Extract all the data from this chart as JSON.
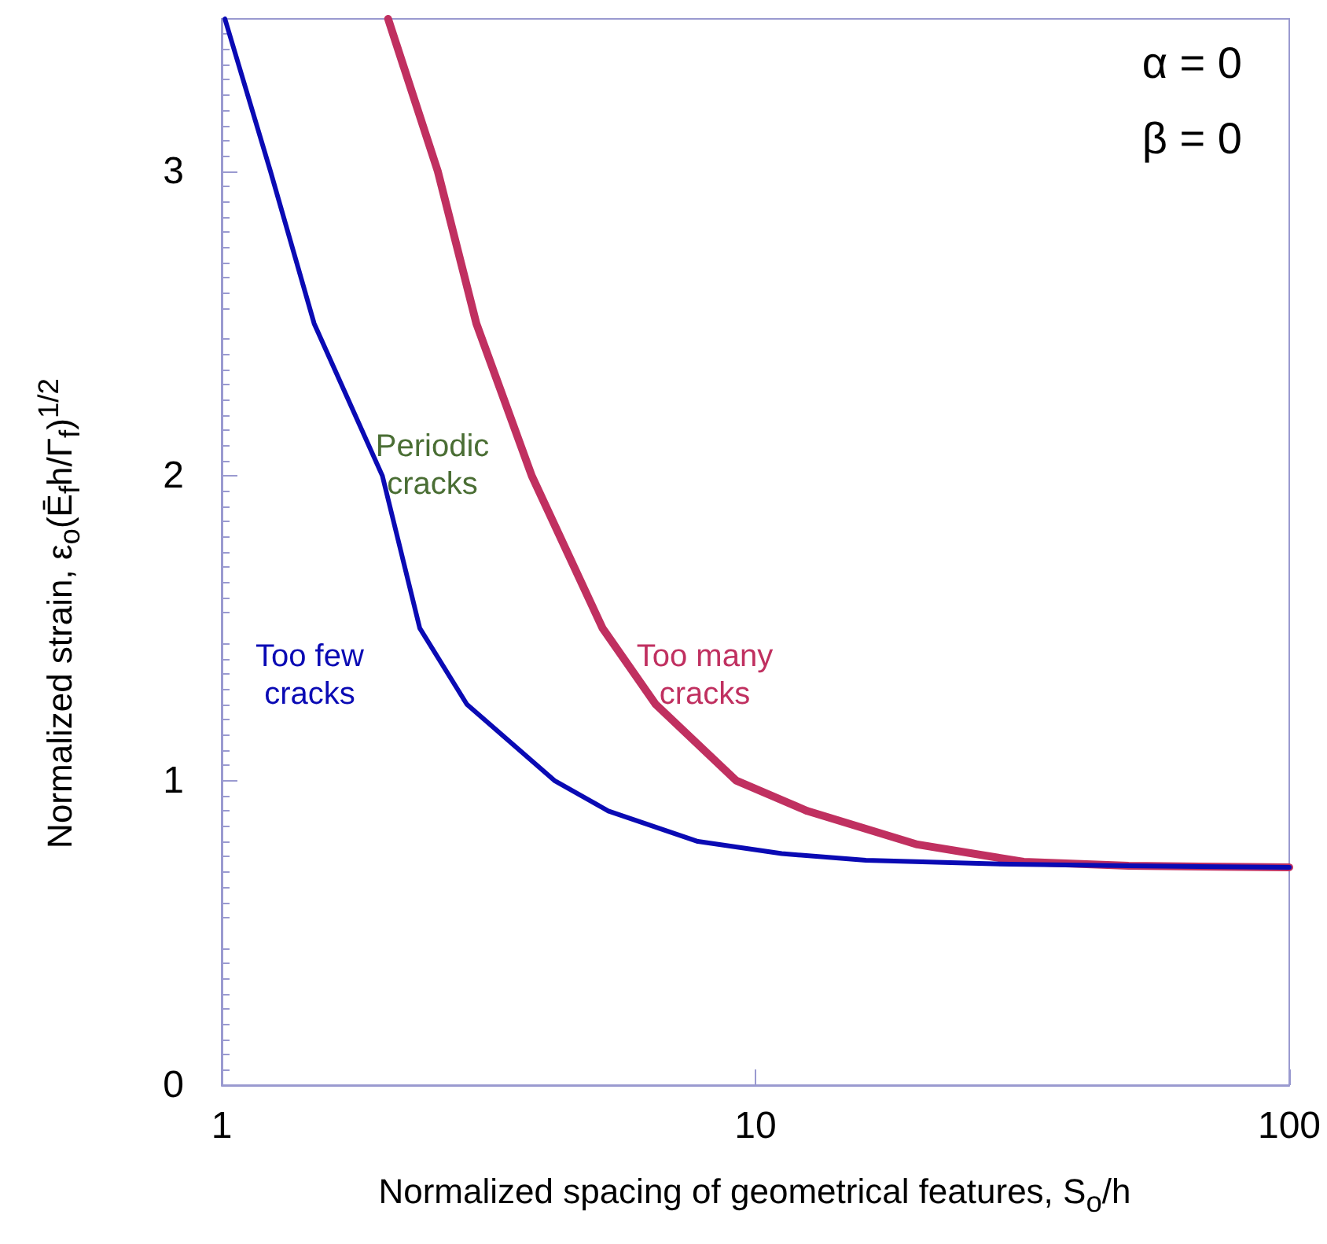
{
  "chart_data": {
    "type": "line",
    "xlabel": "Normalized spacing of geometrical features, S$_{o}$/h",
    "ylabel": "Normalized strain, ε$_{o}$(Ē$_{f}$h/Γ$_{f}$)$^{1/2}$",
    "log": "x",
    "xlim": [
      1,
      100
    ],
    "xticks": [
      1,
      10,
      100
    ],
    "ylim": [
      0,
      3.5
    ],
    "yticks": [
      0,
      1,
      2,
      3
    ],
    "grid": false,
    "legend": false,
    "marker": "none",
    "line_style": "solid",
    "series": [
      {
        "name": "Too few cracks",
        "color": "#0a0ab4",
        "x": [
          1.014,
          1.234,
          1.49,
          2.0,
          2.35,
          2.88,
          4.2,
          5.3,
          7.8,
          11.2,
          16.1,
          30,
          50,
          100
        ],
        "values": [
          3.5,
          3.0,
          2.5,
          2.0,
          1.5,
          1.25,
          1.0,
          0.9,
          0.8,
          0.76,
          0.738,
          0.725,
          0.72,
          0.715
        ]
      },
      {
        "name": "Too many cracks",
        "color": "#c03060",
        "x": [
          2.05,
          2.54,
          3.0,
          3.81,
          5.17,
          6.5,
          9.2,
          12.5,
          20.1,
          31.8,
          50,
          100
        ],
        "values": [
          3.5,
          3.0,
          2.5,
          2.0,
          1.5,
          1.25,
          1.0,
          0.9,
          0.79,
          0.733,
          0.72,
          0.715
        ]
      }
    ],
    "annotations": [
      "α = 0",
      "β = 0",
      "Periodic cracks"
    ]
  }
}
